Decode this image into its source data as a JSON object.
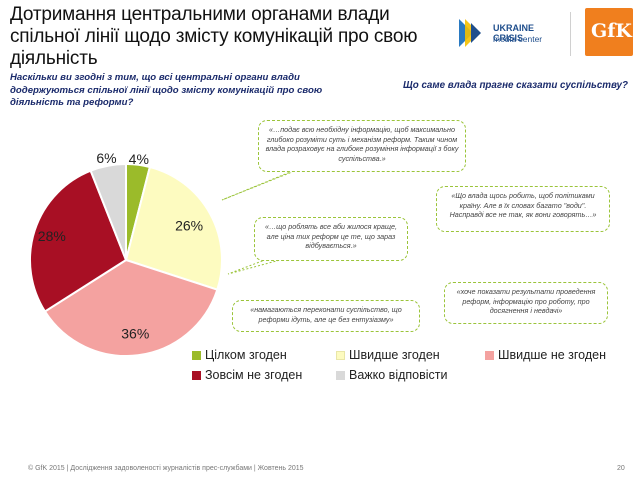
{
  "header": {
    "title": "Дотримання центральними органами влади спільної лінії щодо змісту комунікацій про свою діяльність",
    "logo_uc_line1": "UKRAINE CRISIS",
    "logo_uc_line2": "media center",
    "logo_gfk": "GfK"
  },
  "question_left": "Наскільки ви згодні з тим, що всі центральні органи влади додержуються спільної лінії щодо змісту комунікацій про свою діяльність та реформи?",
  "question_right": "Що саме влада прагне сказати суспільству?",
  "chart_data": {
    "type": "pie",
    "categories": [
      "Цілком згоден",
      "Швидше згоден",
      "Швидше не згоден",
      "Зовсім не згоден",
      "Важко відповісти"
    ],
    "values": [
      4,
      26,
      36,
      28,
      6
    ],
    "labels": [
      "4%",
      "26%",
      "36%",
      "28%",
      "6%"
    ],
    "colors": [
      "#9bbb2a",
      "#fdfbc0",
      "#f4a2a0",
      "#a80f24",
      "#d9d9d9"
    ],
    "legend_position": "bottom-right"
  },
  "quotes": [
    "«…подає всю необхідну інформацію, щоб максимально глибоко розуміти суть і механізм реформ. Таким чином влада розраховує на глибоке розуміння інформації з боку суспільства.»",
    "«Що влада щось робить, щоб політиками країну. Але в їх словах багато \"води\". Насправді все не так, як вони говорять…»",
    "«…що роблять все аби жилося краще, але ціна тих реформ це те, що зараз відбувається.»",
    "«хоче показати результати проведення реформ, інформацію про роботу, про досягнення і невдачі»",
    "«намагаються переконати суспільство, що реформи ідуть, але це без ентузіазму»"
  ],
  "footer": {
    "text": "© GfK 2015 | Дослідження задоволеності журналістів прес-службами | Жовтень 2015",
    "page": "20"
  }
}
